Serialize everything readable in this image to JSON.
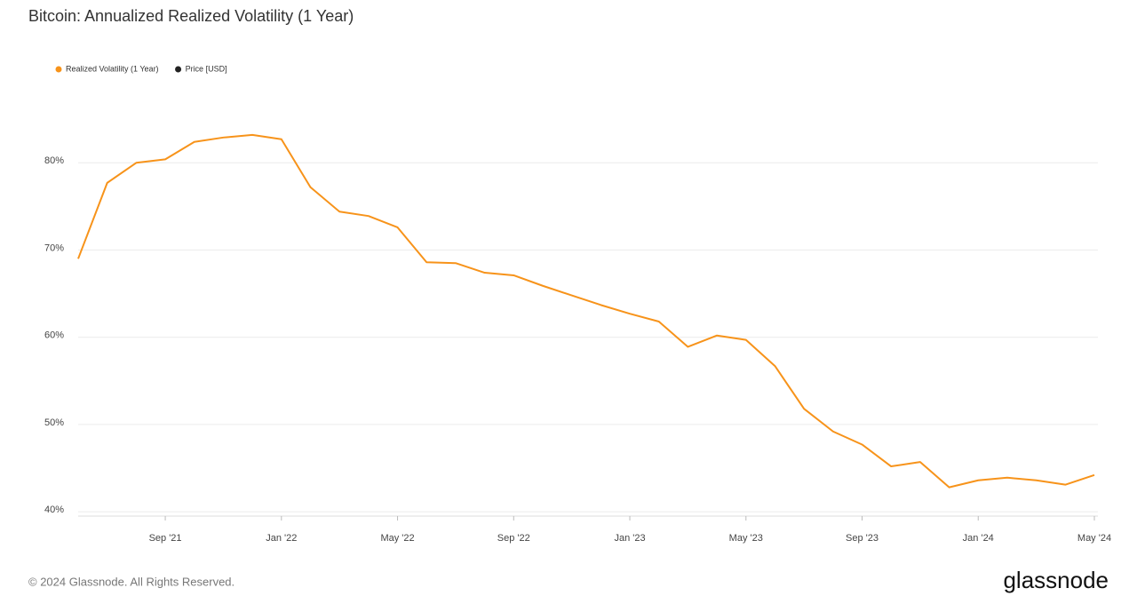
{
  "chart_data": {
    "type": "line",
    "title": "Bitcoin: Annualized Realized Volatility (1 Year)",
    "legend": [
      {
        "name": "Realized Volatility (1 Year)",
        "color": "#f7931a"
      },
      {
        "name": "Price [USD]",
        "color": "#222222"
      }
    ],
    "x": [
      "2021-06",
      "2021-07",
      "2021-08",
      "2021-09",
      "2021-10",
      "2021-11",
      "2021-12",
      "2022-01",
      "2022-02",
      "2022-03",
      "2022-04",
      "2022-05",
      "2022-06",
      "2022-07",
      "2022-08",
      "2022-09",
      "2022-10",
      "2022-11",
      "2022-12",
      "2023-01",
      "2023-02",
      "2023-03",
      "2023-04",
      "2023-05",
      "2023-06",
      "2023-07",
      "2023-08",
      "2023-09",
      "2023-10",
      "2023-11",
      "2023-12",
      "2024-01",
      "2024-02",
      "2024-03",
      "2024-04",
      "2024-05"
    ],
    "series": [
      {
        "name": "Realized Volatility (1 Year)",
        "color": "#f7931a",
        "values": [
          69,
          77.7,
          80,
          80.4,
          82.4,
          82.9,
          83.2,
          82.7,
          77.2,
          74.4,
          73.9,
          72.6,
          68.6,
          68.5,
          67.4,
          67.1,
          65.9,
          64.8,
          63.7,
          62.7,
          61.8,
          58.9,
          60.2,
          59.7,
          56.7,
          51.8,
          49.2,
          47.7,
          45.2,
          45.7,
          42.8,
          43.6,
          43.9,
          43.6,
          43.1,
          44.2
        ]
      }
    ],
    "xlim": [
      "2021-06",
      "2024-05"
    ],
    "xticks": [
      {
        "value": "2021-09",
        "label": "Sep '21"
      },
      {
        "value": "2022-01",
        "label": "Jan '22"
      },
      {
        "value": "2022-05",
        "label": "May '22"
      },
      {
        "value": "2022-09",
        "label": "Sep '22"
      },
      {
        "value": "2023-01",
        "label": "Jan '23"
      },
      {
        "value": "2023-05",
        "label": "May '23"
      },
      {
        "value": "2023-09",
        "label": "Sep '23"
      },
      {
        "value": "2024-01",
        "label": "Jan '24"
      },
      {
        "value": "2024-05",
        "label": "May '24"
      }
    ],
    "ylim": [
      39.5,
      89.5
    ],
    "yticks": [
      {
        "value": 40,
        "label": "40%"
      },
      {
        "value": 50,
        "label": "50%"
      },
      {
        "value": 60,
        "label": "60%"
      },
      {
        "value": 70,
        "label": "70%"
      },
      {
        "value": 80,
        "label": "80%"
      }
    ],
    "grid": true
  },
  "footer": {
    "copyright": "© 2024 Glassnode. All Rights Reserved.",
    "logo": "glassnode"
  }
}
